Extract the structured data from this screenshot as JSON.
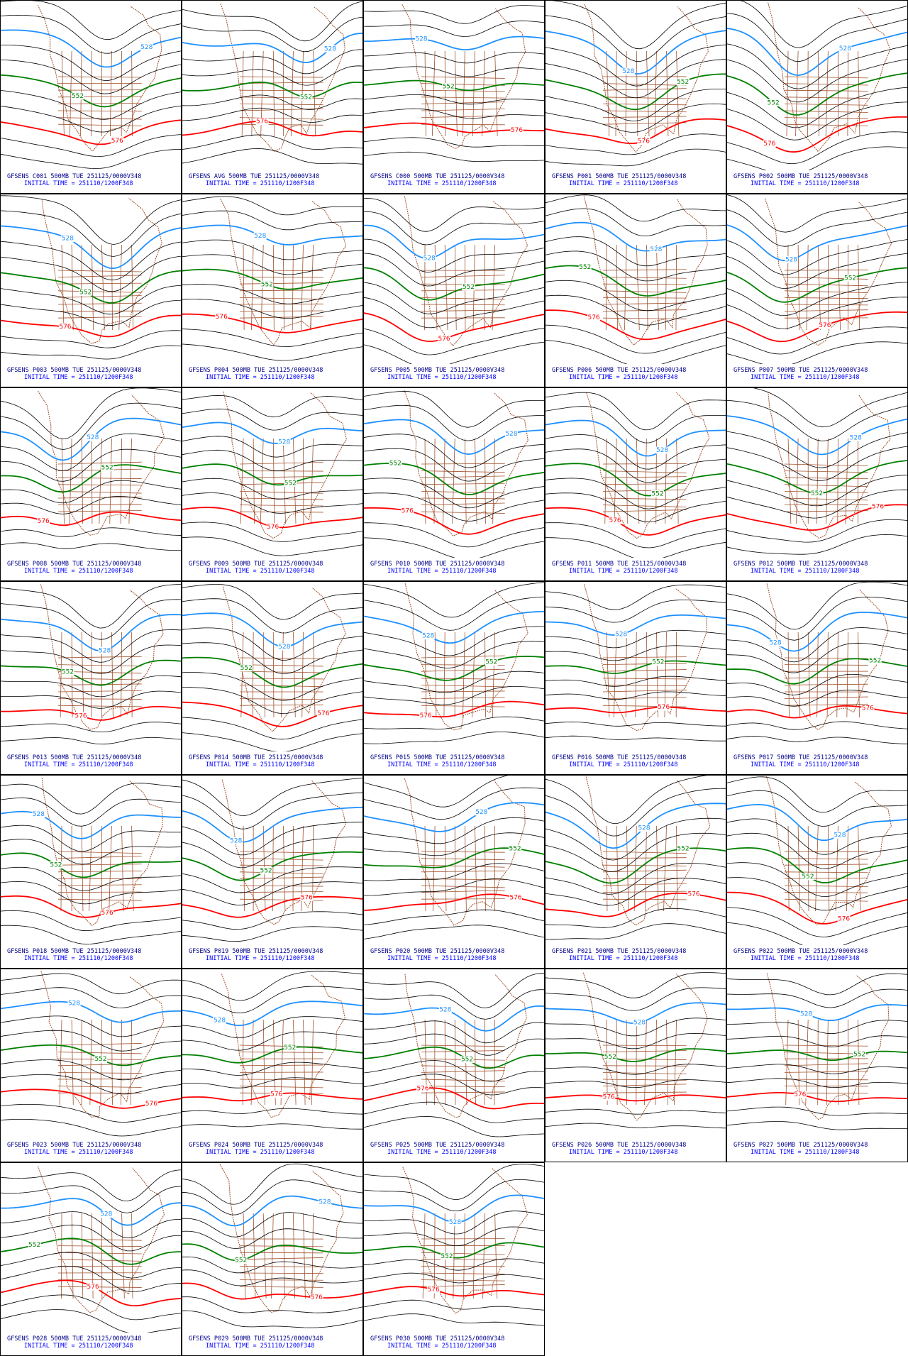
{
  "panels": [
    {
      "title": "GFSENS C001 500MB TUE 251125/0000V348",
      "subtitle": "INITIAL TIME = 251110/1200F348",
      "labels": [
        "528",
        "552",
        "576"
      ]
    },
    {
      "title": "GFSENS AVG 500MB TUE 251125/0000V348",
      "subtitle": "INITIAL TIME = 251110/1200F348",
      "labels": [
        "528",
        "552",
        "576"
      ]
    },
    {
      "title": "GFSENS C000 500MB TUE 251125/0000V348",
      "subtitle": "INITIAL TIME = 251110/1200F348",
      "labels": [
        "528",
        "552",
        "576"
      ]
    },
    {
      "title": "GFSENS P001 500MB TUE 251125/0000V348",
      "subtitle": "INITIAL TIME = 251110/1200F348",
      "labels": [
        "528",
        "552",
        "576"
      ]
    },
    {
      "title": "GFSENS P002 500MB TUE 251125/0000V348",
      "subtitle": "INITIAL TIME = 251110/1200F348",
      "labels": [
        "528",
        "552",
        "576"
      ]
    },
    {
      "title": "GFSENS P003 500MB TUE 251125/0000V348",
      "subtitle": "INITIAL TIME = 251110/1200F348",
      "labels": [
        "528",
        "552",
        "576"
      ]
    },
    {
      "title": "GFSENS P004 500MB TUE 251125/0000V348",
      "subtitle": "INITIAL TIME = 251110/1200F348",
      "labels": [
        "528",
        "552",
        "576"
      ]
    },
    {
      "title": "GFSENS P005 500MB TUE 251125/0000V348",
      "subtitle": "INITIAL TIME = 251110/1200F348",
      "labels": [
        "528",
        "552",
        "576"
      ]
    },
    {
      "title": "GFSENS P006 500MB TUE 251125/0000V348",
      "subtitle": "INITIAL TIME = 251110/1200F348",
      "labels": [
        "528",
        "552",
        "576"
      ]
    },
    {
      "title": "GFSENS P007 500MB TUE 251125/0000V348",
      "subtitle": "INITIAL TIME = 251110/1200F348",
      "labels": [
        "528",
        "552",
        "576"
      ]
    },
    {
      "title": "GFSENS P008 500MB TUE 251125/0000V348",
      "subtitle": "INITIAL TIME = 251110/1200F348",
      "labels": [
        "528",
        "552",
        "576"
      ]
    },
    {
      "title": "GFSENS P009 500MB TUE 251125/0000V348",
      "subtitle": "INITIAL TIME = 251110/1200F348",
      "labels": [
        "528",
        "552",
        "576"
      ]
    },
    {
      "title": "GFSENS P010 500MB TUE 251125/0000V348",
      "subtitle": "INITIAL TIME = 251110/1200F348",
      "labels": [
        "528",
        "552",
        "576"
      ]
    },
    {
      "title": "GFSENS P011 500MB TUE 251125/0000V348",
      "subtitle": "INITIAL TIME = 251110/1200F348",
      "labels": [
        "528",
        "552",
        "576"
      ]
    },
    {
      "title": "GFSENS P012 500MB TUE 251125/0000V348",
      "subtitle": "INITIAL TIME = 251110/1200F348",
      "labels": [
        "528",
        "552",
        "576"
      ]
    },
    {
      "title": "GFSENS P013 500MB TUE 251125/0000V348",
      "subtitle": "INITIAL TIME = 251110/1200F348",
      "labels": [
        "528",
        "552",
        "576"
      ]
    },
    {
      "title": "GFSENS P014 500MB TUE 251125/0000V348",
      "subtitle": "INITIAL TIME = 251110/1200F348",
      "labels": [
        "528",
        "552",
        "576"
      ]
    },
    {
      "title": "GFSENS P015 500MB TUE 251125/0000V348",
      "subtitle": "INITIAL TIME = 251110/1200F348",
      "labels": [
        "528",
        "552",
        "576"
      ]
    },
    {
      "title": "GFSENS P016 500MB TUE 251125/0000V348",
      "subtitle": "INITIAL TIME = 251110/1200F348",
      "labels": [
        "528",
        "552",
        "576"
      ]
    },
    {
      "title": "GFSENS P017 500MB TUE 251125/0000V348",
      "subtitle": "INITIAL TIME = 251110/1200F348",
      "labels": [
        "528",
        "552",
        "576"
      ]
    },
    {
      "title": "GFSENS P018 500MB TUE 251125/0000V348",
      "subtitle": "INITIAL TIME = 251110/1200F348",
      "labels": [
        "528",
        "552",
        "576"
      ]
    },
    {
      "title": "GFSENS P019 500MB TUE 251125/0000V348",
      "subtitle": "INITIAL TIME = 251110/1200F348",
      "labels": [
        "528",
        "552",
        "576"
      ]
    },
    {
      "title": "GFSENS P020 500MB TUE 251125/0000V348",
      "subtitle": "INITIAL TIME = 251110/1200F348",
      "labels": [
        "528",
        "552",
        "576"
      ]
    },
    {
      "title": "GFSENS P021 500MB TUE 251125/0000V348",
      "subtitle": "INITIAL TIME = 251110/1200F348",
      "labels": [
        "528",
        "552",
        "576"
      ]
    },
    {
      "title": "GFSENS P022 500MB TUE 251125/0000V348",
      "subtitle": "INITIAL TIME = 251110/1200F348",
      "labels": [
        "528",
        "552",
        "576"
      ]
    },
    {
      "title": "GFSENS P023 500MB TUE 251125/0000V348",
      "subtitle": "INITIAL TIME = 251110/1200F348",
      "labels": [
        "528",
        "552",
        "576"
      ]
    },
    {
      "title": "GFSENS P024 500MB TUE 251125/0000V348",
      "subtitle": "INITIAL TIME = 251110/1200F348",
      "labels": [
        "528",
        "552",
        "576"
      ]
    },
    {
      "title": "GFSENS P025 500MB TUE 251125/0000V348",
      "subtitle": "INITIAL TIME = 251110/1200F348",
      "labels": [
        "528",
        "552",
        "576"
      ]
    },
    {
      "title": "GFSENS P026 500MB TUE 251125/0000V348",
      "subtitle": "INITIAL TIME = 251110/1200F348",
      "labels": [
        "528",
        "552",
        "576"
      ]
    },
    {
      "title": "GFSENS P027 500MB TUE 251125/0000V348",
      "subtitle": "INITIAL TIME = 251110/1200F348",
      "labels": [
        "528",
        "552",
        "576"
      ]
    },
    {
      "title": "GFSENS P028 500MB TUE 251125/0000V348",
      "subtitle": "INITIAL TIME = 251110/1200F348",
      "labels": [
        "528",
        "552",
        "576"
      ]
    },
    {
      "title": "GFSENS P029 500MB TUE 251125/0000V348",
      "subtitle": "INITIAL TIME = 251110/1200F348",
      "labels": [
        "528",
        "552",
        "576"
      ]
    },
    {
      "title": "GFSENS P030 500MB TUE 251125/0000V348",
      "subtitle": "INITIAL TIME = 251110/1200F348",
      "labels": [
        "528",
        "552",
        "576"
      ]
    }
  ]
}
